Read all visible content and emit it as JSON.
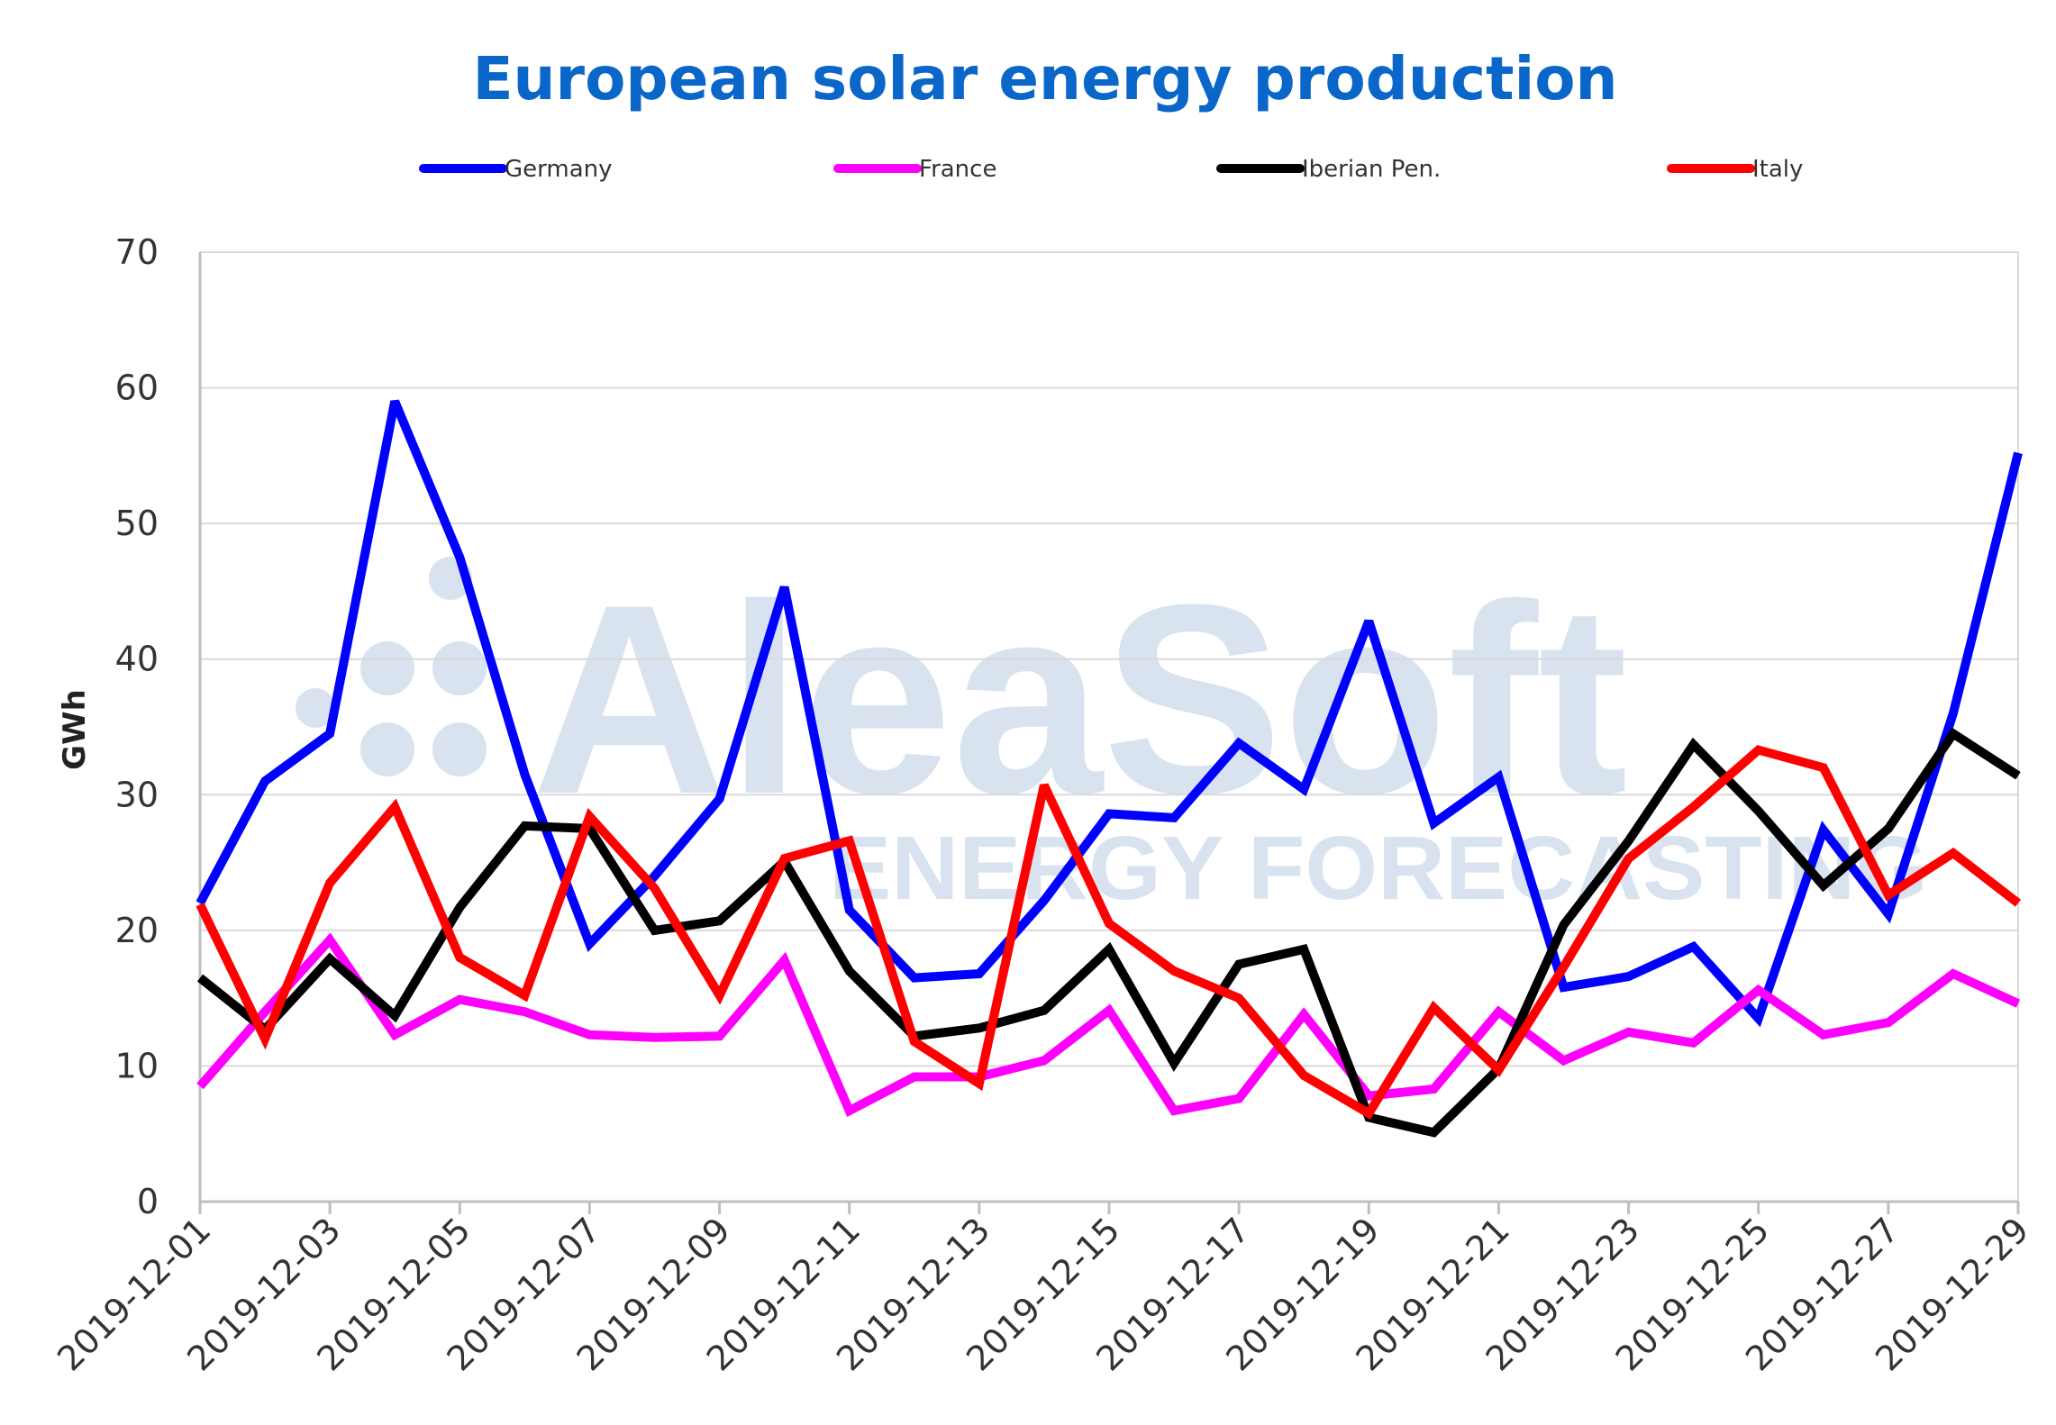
{
  "colors": {
    "title": "#0a66c8",
    "grid": "#d9d9d9",
    "axis": "#bfbfbf",
    "watermark": "#d9e2ef"
  },
  "watermark": {
    "main": "AleaSoft",
    "sub": "ENERGY FORECASTING"
  },
  "chart_data": {
    "type": "line",
    "title": "European solar energy production",
    "xlabel": "",
    "ylabel": "GWh",
    "ylim": [
      0,
      70
    ],
    "yticks": [
      0,
      10,
      20,
      30,
      40,
      50,
      60,
      70
    ],
    "grid": true,
    "legend_position": "top",
    "x": [
      "2019-12-01",
      "2019-12-02",
      "2019-12-03",
      "2019-12-04",
      "2019-12-05",
      "2019-12-06",
      "2019-12-07",
      "2019-12-08",
      "2019-12-09",
      "2019-12-10",
      "2019-12-11",
      "2019-12-12",
      "2019-12-13",
      "2019-12-14",
      "2019-12-15",
      "2019-12-16",
      "2019-12-17",
      "2019-12-18",
      "2019-12-19",
      "2019-12-20",
      "2019-12-21",
      "2019-12-22",
      "2019-12-23",
      "2019-12-24",
      "2019-12-25",
      "2019-12-26",
      "2019-12-27",
      "2019-12-28",
      "2019-12-29"
    ],
    "xtick_labels": [
      "2019-12-01",
      "2019-12-03",
      "2019-12-05",
      "2019-12-07",
      "2019-12-09",
      "2019-12-11",
      "2019-12-13",
      "2019-12-15",
      "2019-12-17",
      "2019-12-19",
      "2019-12-21",
      "2019-12-23",
      "2019-12-25",
      "2019-12-27",
      "2019-12-29"
    ],
    "series": [
      {
        "name": "Germany",
        "color": "#0000ff",
        "values": [
          22,
          31,
          34.5,
          59,
          47.5,
          31.5,
          19,
          24,
          29.7,
          45.3,
          21.5,
          16.5,
          16.8,
          22.2,
          28.6,
          28.3,
          33.8,
          30.4,
          42.8,
          27.9,
          31.3,
          15.8,
          16.6,
          18.8,
          13.5,
          27.4,
          21.2,
          36,
          55.2
        ]
      },
      {
        "name": "France",
        "color": "#ff00ff",
        "values": [
          8.5,
          14,
          19.3,
          12.3,
          14.9,
          14,
          12.3,
          12.1,
          12.2,
          17.8,
          6.7,
          9.2,
          9.2,
          10.4,
          14.1,
          6.7,
          7.6,
          13.8,
          7.8,
          8.3,
          14,
          10.4,
          12.5,
          11.7,
          15.6,
          12.3,
          13.2,
          16.8,
          14.6
        ]
      },
      {
        "name": "Iberian Pen.",
        "color": "#000000",
        "values": [
          16.5,
          12.7,
          17.9,
          13.7,
          21.7,
          27.7,
          27.5,
          20,
          20.7,
          25.1,
          17,
          12.2,
          12.8,
          14.1,
          18.6,
          10.2,
          17.5,
          18.6,
          6.2,
          5.1,
          9.8,
          20.4,
          26.6,
          33.7,
          28.8,
          23.3,
          27.5,
          34.5,
          31.4
        ]
      },
      {
        "name": "Italy",
        "color": "#ff0000",
        "values": [
          21.9,
          12,
          23.5,
          29.1,
          18,
          15.2,
          28.4,
          23.1,
          15.2,
          25.3,
          26.6,
          11.8,
          8.7,
          30.7,
          20.5,
          17,
          15,
          9.3,
          6.5,
          14.3,
          9.7,
          17.3,
          25.3,
          29.1,
          33.3,
          32,
          22.6,
          25.7,
          22
        ]
      }
    ]
  }
}
